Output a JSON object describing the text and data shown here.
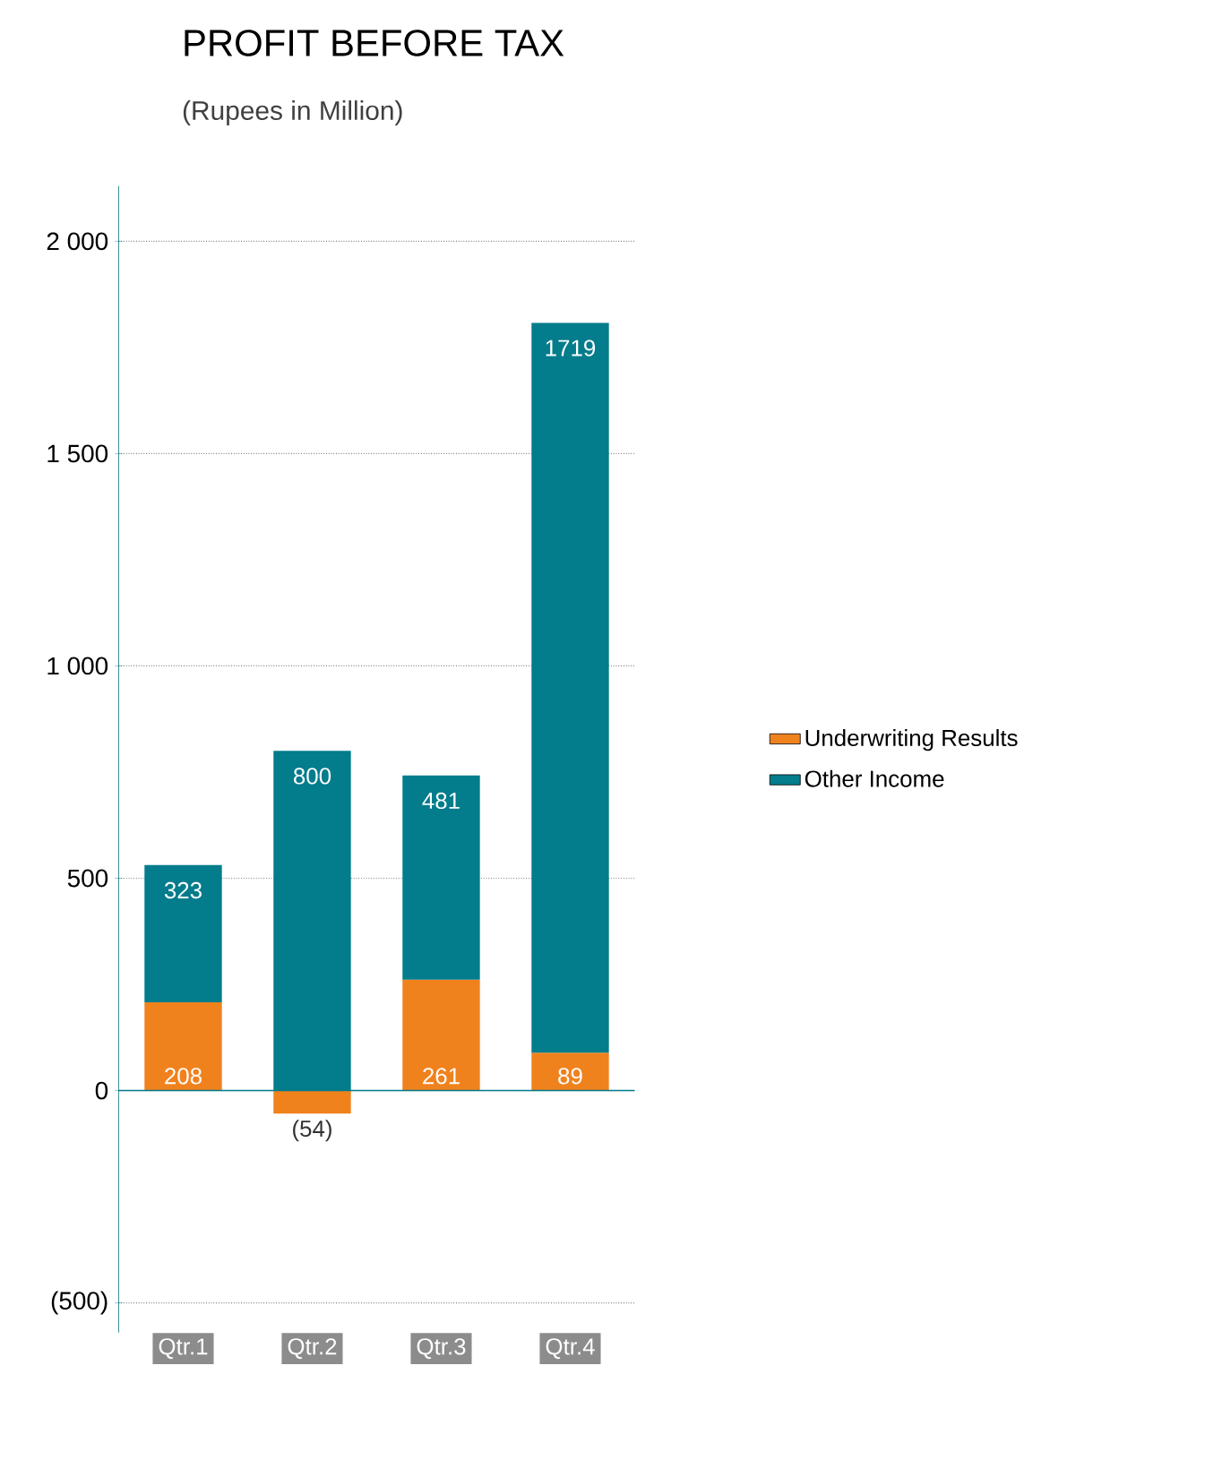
{
  "chart_data": {
    "type": "bar",
    "stacked": true,
    "title": "PROFIT BEFORE TAX",
    "subtitle": "(Rupees in Million)",
    "categories": [
      "Qtr.1",
      "Qtr.2",
      "Qtr.3",
      "Qtr.4"
    ],
    "series": [
      {
        "name": "Underwriting Results",
        "color": "#f0821e",
        "values": [
          208,
          -54,
          261,
          89
        ],
        "value_labels": [
          "208",
          "(54)",
          "261",
          "89"
        ]
      },
      {
        "name": "Other Income",
        "color": "#037c8c",
        "values": [
          323,
          800,
          481,
          1719
        ],
        "value_labels": [
          "323",
          "800",
          "481",
          "1719"
        ]
      }
    ],
    "ylim": [
      -570,
      2130
    ],
    "yticks": [
      {
        "value": -500,
        "label": "(500)"
      },
      0,
      500,
      {
        "value": 1000,
        "label": "1 000"
      },
      {
        "value": 1500,
        "label": "1 500"
      },
      {
        "value": 2000,
        "label": "2 000"
      }
    ],
    "ref_lines": [
      {
        "axis": "y",
        "value": 0,
        "color": "#037c8c"
      }
    ],
    "grid": "y",
    "legend": "right"
  }
}
